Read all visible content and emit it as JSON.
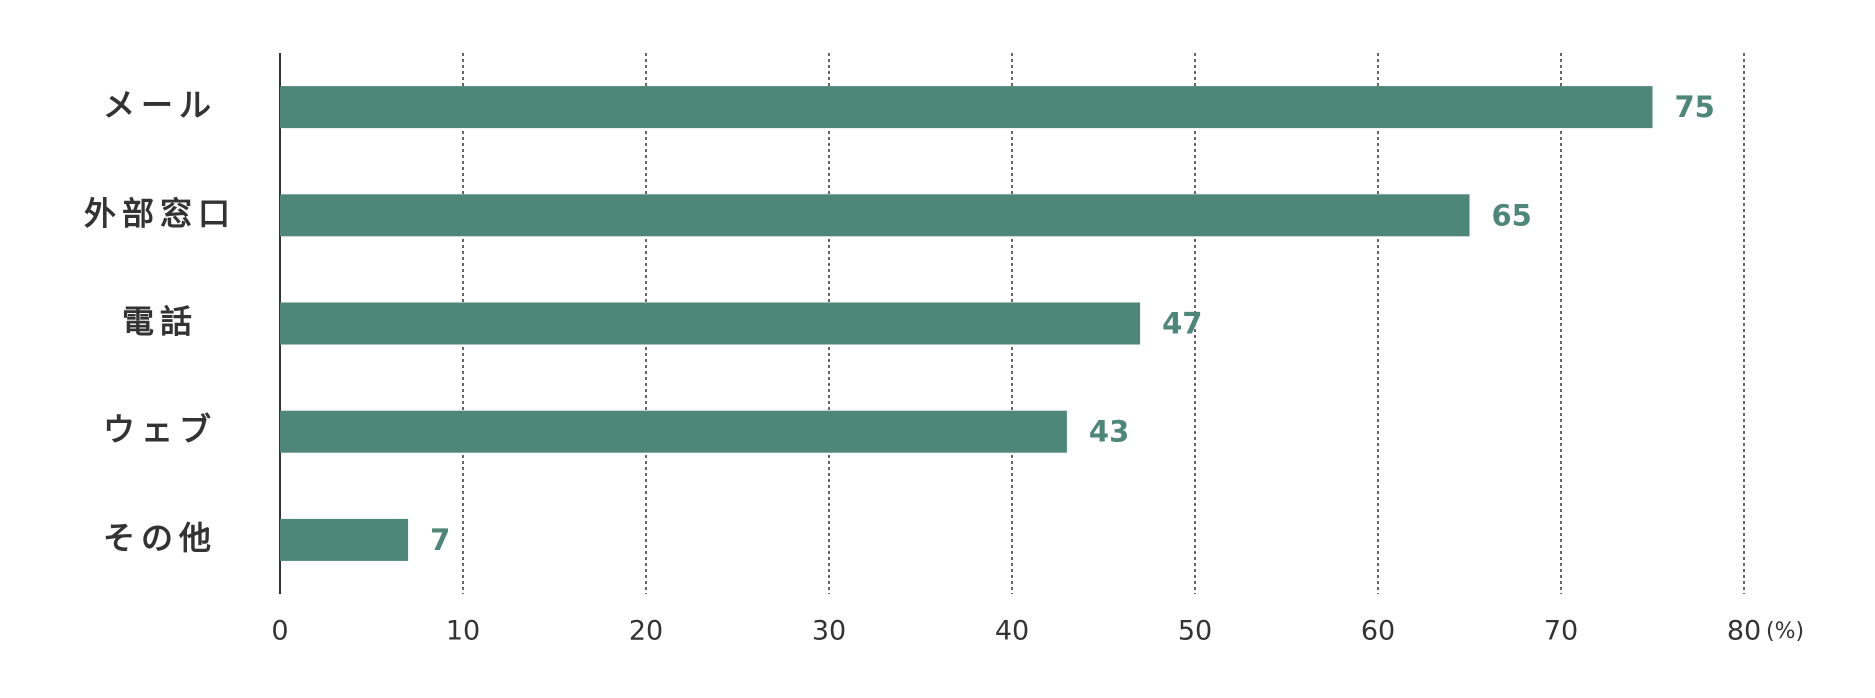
{
  "chart_data": {
    "type": "bar",
    "orientation": "horizontal",
    "categories": [
      "メール",
      "外部窓口",
      "電話",
      "ウェブ",
      "その他"
    ],
    "values": [
      75,
      65,
      47,
      43,
      7
    ],
    "color": "#4e8679",
    "xlim": [
      0,
      80
    ],
    "xticks": [
      0,
      10,
      20,
      30,
      40,
      50,
      60,
      70,
      80
    ],
    "x_unit": "(%)",
    "grid": true
  }
}
